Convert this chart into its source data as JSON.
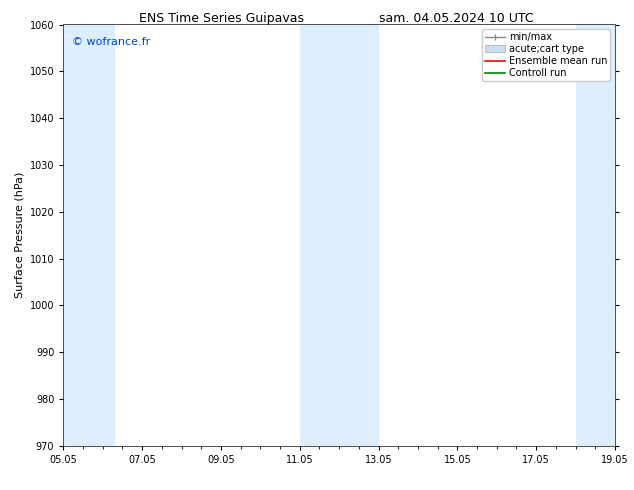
{
  "title_left": "ENS Time Series Guipavas",
  "title_right": "sam. 04.05.2024 10 UTC",
  "ylabel": "Surface Pressure (hPa)",
  "ylim": [
    970,
    1060
  ],
  "yticks": [
    970,
    980,
    990,
    1000,
    1010,
    1020,
    1030,
    1040,
    1050,
    1060
  ],
  "x_numeric_start": 0,
  "x_numeric_end": 14,
  "xtick_positions": [
    0,
    2,
    4,
    6,
    8,
    10,
    12,
    14
  ],
  "xtick_labels": [
    "05.05",
    "07.05",
    "09.05",
    "11.05",
    "13.05",
    "15.05",
    "17.05",
    "19.05"
  ],
  "shaded_bands": [
    {
      "x_start": 0.0,
      "x_end": 1.3,
      "color": "#ddeeff"
    },
    {
      "x_start": 6.0,
      "x_end": 8.0,
      "color": "#ddeeff"
    },
    {
      "x_start": 13.0,
      "x_end": 14.0,
      "color": "#ddeeff"
    }
  ],
  "watermark_text": "© wofrance.fr",
  "watermark_color": "#0044cc",
  "legend_labels": [
    "min/max",
    "acute;cart type",
    "Ensemble mean run",
    "Controll run"
  ],
  "legend_colors": [
    "#aaaaaa",
    "#c8dff0",
    "red",
    "green"
  ],
  "bg_color": "#ffffff",
  "title_fontsize": 9,
  "axis_fontsize": 8,
  "tick_fontsize": 7,
  "legend_fontsize": 7
}
